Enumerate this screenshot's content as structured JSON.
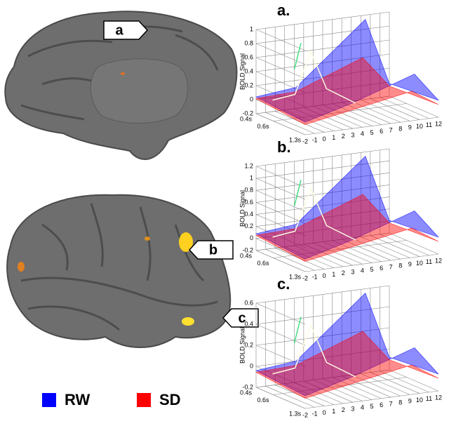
{
  "brain_labels": [
    "a",
    "b",
    "c"
  ],
  "legend": [
    {
      "name": "RW",
      "color": "#0000ff"
    },
    {
      "name": "SD",
      "color": "#ff0000"
    }
  ],
  "panels": [
    {
      "label": "a.",
      "z_label": "BOLD Signal",
      "z_ticks": [
        -0.2,
        0,
        0.2,
        0.4,
        0.6,
        0.8,
        1
      ],
      "x_ticks": [
        -2,
        -1,
        0,
        1,
        2,
        3,
        4,
        5,
        6,
        7,
        8,
        9,
        10,
        11,
        12
      ],
      "depth_ticks": [
        "0.4s",
        "0.6s",
        "1.3s"
      ]
    },
    {
      "label": "b.",
      "z_label": "BOLD Signal",
      "z_ticks": [
        -0.2,
        0,
        0.2,
        0.4,
        0.6,
        0.8,
        1,
        1.2
      ],
      "x_ticks": [
        -2,
        -1,
        0,
        1,
        2,
        3,
        4,
        5,
        6,
        7,
        8,
        9,
        10,
        11,
        12
      ],
      "depth_ticks": [
        "0.4s",
        "0.6s",
        "1.3s"
      ]
    },
    {
      "label": "c.",
      "z_label": "BOLD Signal",
      "z_ticks": [
        -0.2,
        0,
        0.2,
        0.4,
        0.6
      ],
      "x_ticks": [
        -2,
        -1,
        0,
        1,
        2,
        3,
        4,
        5,
        6,
        7,
        8,
        9,
        10,
        11,
        12
      ],
      "depth_ticks": [
        "0.4s",
        "0.6s",
        "1.3s"
      ]
    }
  ]
}
